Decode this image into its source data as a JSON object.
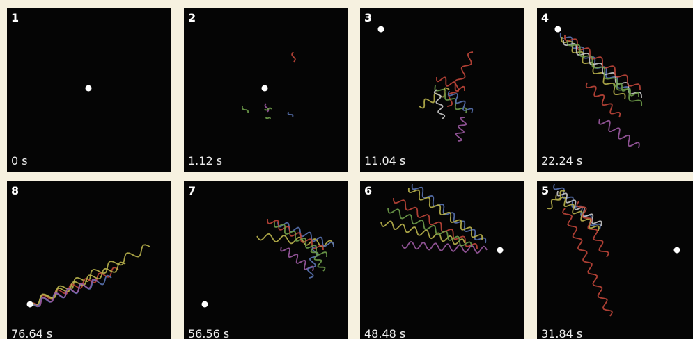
{
  "panels": [
    {
      "number": "1",
      "time": "0 s"
    },
    {
      "number": "2",
      "time": "1.12 s"
    },
    {
      "number": "3",
      "time": "11.04 s"
    },
    {
      "number": "4",
      "time": "22.24 s"
    },
    {
      "number": "8",
      "time": "76.64 s"
    },
    {
      "number": "7",
      "time": "56.56 s"
    },
    {
      "number": "6",
      "time": "48.48 s"
    },
    {
      "number": "5",
      "time": "31.84 s"
    }
  ]
}
